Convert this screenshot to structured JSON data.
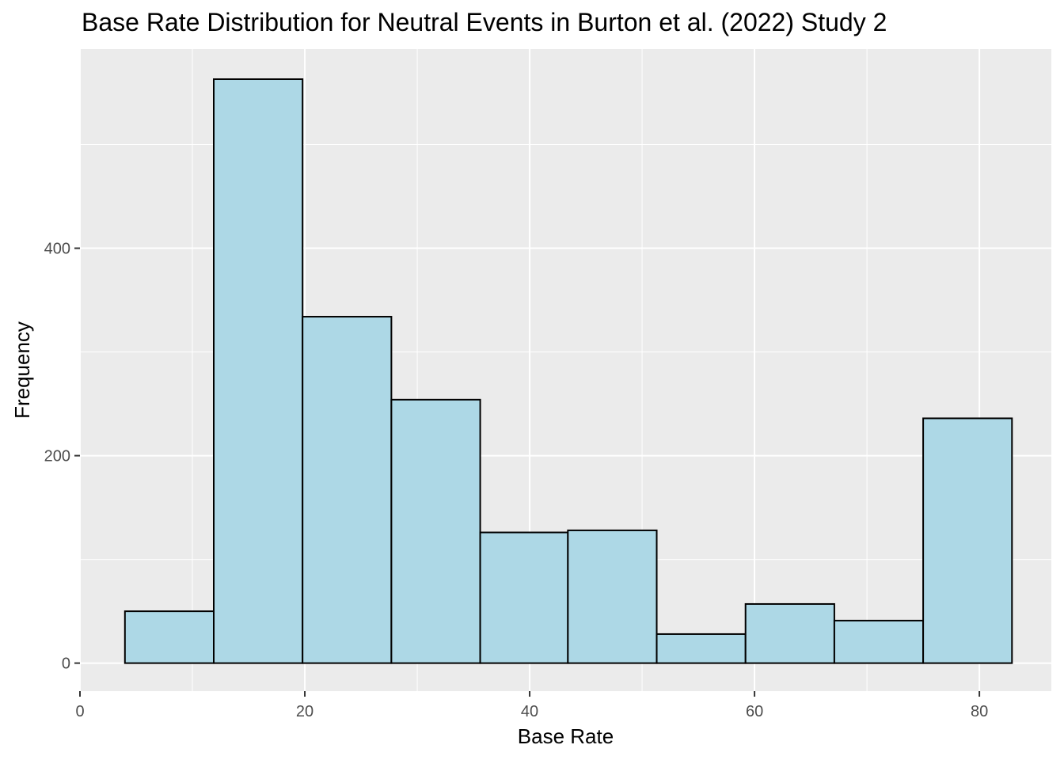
{
  "chart_data": {
    "type": "bar",
    "title": "Base Rate Distribution for Neutral Events in Burton et al. (2022) Study 2",
    "xlabel": "Base Rate",
    "ylabel": "Frequency",
    "bin_edges": [
      4,
      11.9,
      19.8,
      27.7,
      35.6,
      43.4,
      51.3,
      59.2,
      67.1,
      75,
      82.9
    ],
    "values": [
      50,
      563,
      334,
      254,
      126,
      128,
      28,
      57,
      41,
      236
    ],
    "xlim": [
      0,
      86.4
    ],
    "ylim": [
      -27,
      592
    ],
    "x_ticks": [
      0,
      20,
      40,
      60,
      80
    ],
    "y_ticks": [
      0,
      200,
      400
    ],
    "x_tick_labels": [
      "0",
      "20",
      "40",
      "60",
      "80"
    ],
    "y_tick_labels": [
      "0",
      "200",
      "400"
    ],
    "bar_fill": "#add8e6",
    "bar_outline": "#000000",
    "panel_background": "#ebebeb",
    "gridline_color": "#ffffff",
    "grid": true,
    "legend": "none"
  }
}
